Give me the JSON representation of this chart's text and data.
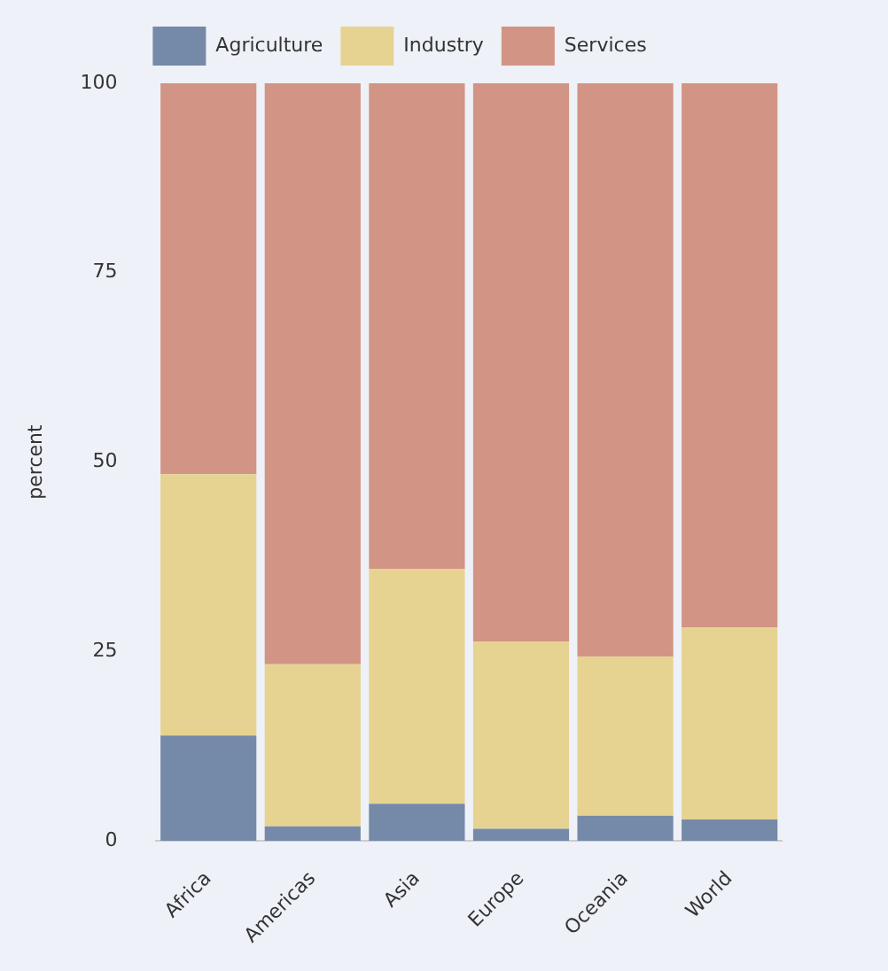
{
  "chart_data": {
    "type": "bar",
    "stacked": true,
    "ylabel": "percent",
    "categories": [
      "Africa",
      "Americas",
      "Asia",
      "Europe",
      "Oceania",
      "World"
    ],
    "series": [
      {
        "name": "Agriculture",
        "color": "#7589a8",
        "values": [
          13.9,
          1.9,
          4.9,
          1.6,
          3.3,
          2.8
        ]
      },
      {
        "name": "Industry",
        "color": "#e6d391",
        "values": [
          34.5,
          21.4,
          31,
          24.7,
          21,
          25.4
        ]
      },
      {
        "name": "Services",
        "color": "#d29484",
        "values": [
          51.6,
          76.7,
          64.1,
          73.7,
          75.7,
          71.8
        ]
      }
    ],
    "ylim": [
      0,
      100
    ],
    "yticks": [
      0,
      25,
      50,
      75,
      100
    ],
    "grid": false,
    "legend": "top"
  }
}
